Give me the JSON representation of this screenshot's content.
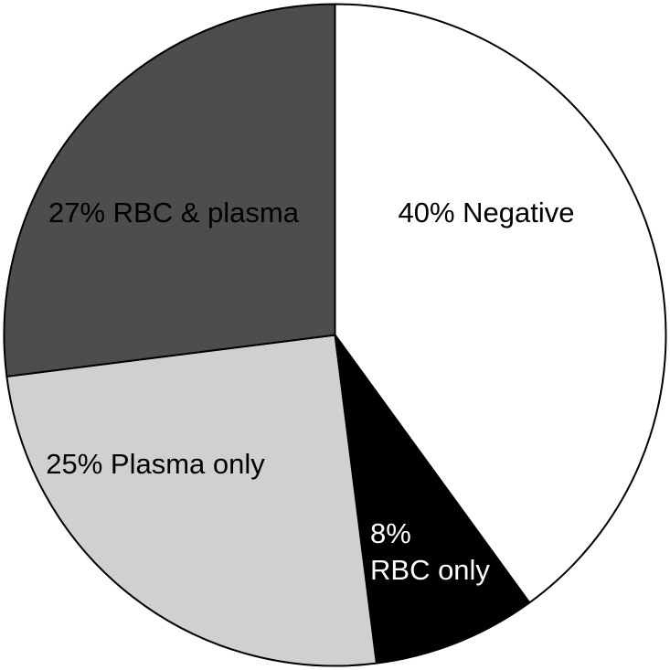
{
  "chart_data": {
    "type": "pie",
    "start_angle_deg": 0,
    "direction": "clockwise",
    "slices": [
      {
        "value": 40,
        "lines": [
          "40% Negative"
        ],
        "color": "#ffffff",
        "text_color": "#000000"
      },
      {
        "value": 8,
        "lines": [
          "8%",
          "RBC only"
        ],
        "color": "#000000",
        "text_color": "#ffffff"
      },
      {
        "value": 25,
        "lines": [
          "25% Plasma only"
        ],
        "color": "#d0d0d0",
        "text_color": "#000000"
      },
      {
        "value": 27,
        "lines": [
          "27% RBC & plasma"
        ],
        "color": "#4d4d4d",
        "text_color": "#000000"
      }
    ]
  }
}
